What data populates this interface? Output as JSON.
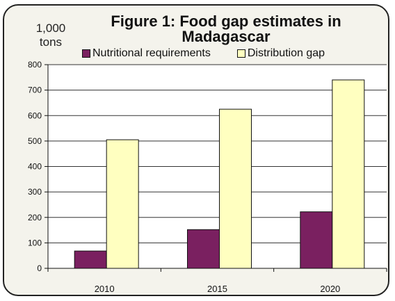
{
  "chart_data": {
    "type": "bar",
    "title_line1": "Figure 1: Food gap estimates in",
    "title_line2": "Madagascar",
    "unit_line1": "1,000",
    "unit_line2": "tons",
    "categories": [
      "2010",
      "2015",
      "2020"
    ],
    "series": [
      {
        "name": "Nutritional requirements",
        "color": "#7a2060",
        "values": [
          68,
          152,
          222
        ]
      },
      {
        "name": "Distribution gap",
        "color": "#ffffc0",
        "values": [
          505,
          625,
          740
        ]
      }
    ],
    "ylim": [
      0,
      800
    ],
    "yticks": [
      0,
      100,
      200,
      300,
      400,
      500,
      600,
      700,
      800
    ],
    "grid": true,
    "legend_position": "top"
  }
}
